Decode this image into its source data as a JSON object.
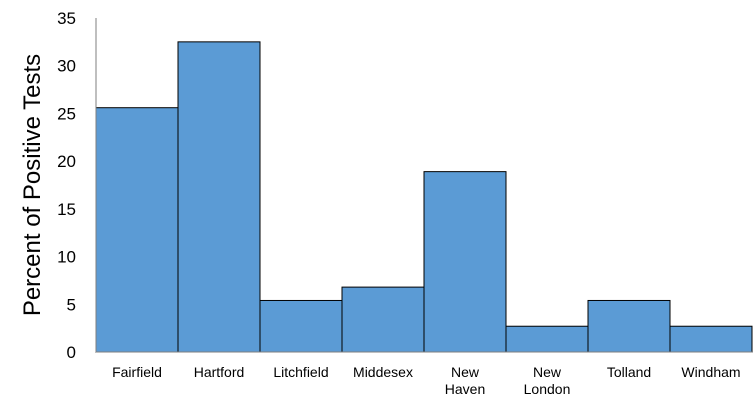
{
  "chart_data": {
    "type": "bar",
    "title": "",
    "xlabel": "",
    "ylabel": "Percent  of Positive Tests",
    "ylim": [
      0,
      35
    ],
    "yticks": [
      0,
      5,
      10,
      15,
      20,
      25,
      30,
      35
    ],
    "grid": false,
    "legend": "none",
    "bar_color": "#5b9bd5",
    "bar_gap": 0,
    "categories": [
      [
        "Fairfield"
      ],
      [
        "Hartford"
      ],
      [
        "Litchfield"
      ],
      [
        "Middesex"
      ],
      [
        "New",
        "Haven"
      ],
      [
        "New",
        "London"
      ],
      [
        "Tolland"
      ],
      [
        "Windham"
      ]
    ],
    "values": [
      25.6,
      32.5,
      5.4,
      6.8,
      18.9,
      2.7,
      5.4,
      2.7
    ]
  }
}
